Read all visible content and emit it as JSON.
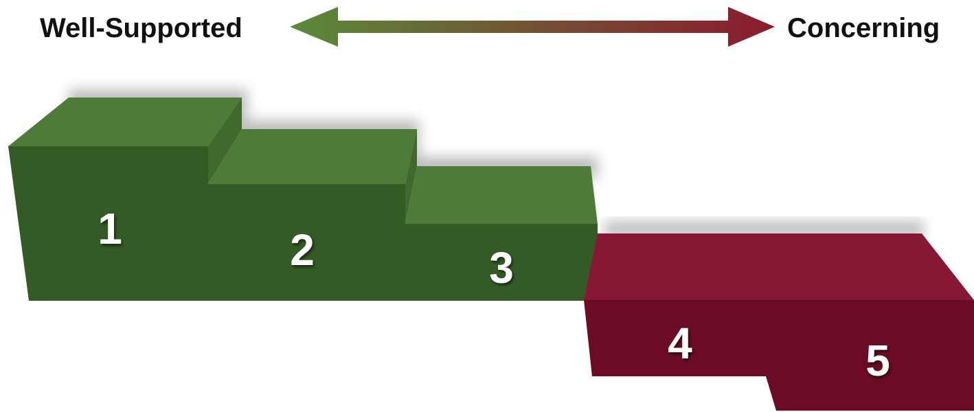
{
  "scale": {
    "left_label": "Well-Supported",
    "right_label": "Concerning",
    "left_color": "#5a8a3a",
    "right_color": "#8b1a2e"
  },
  "colors": {
    "green_top": "#4e7b38",
    "green_front": "#345b25",
    "green_side": "#41692e",
    "red_top": "#861833",
    "red_front": "#6b0c24",
    "red_side": "#7a1129"
  },
  "steps": [
    {
      "label": "1",
      "group": "well-supported"
    },
    {
      "label": "2",
      "group": "well-supported"
    },
    {
      "label": "3",
      "group": "well-supported"
    },
    {
      "label": "4",
      "group": "concerning"
    },
    {
      "label": "5",
      "group": "concerning"
    }
  ]
}
